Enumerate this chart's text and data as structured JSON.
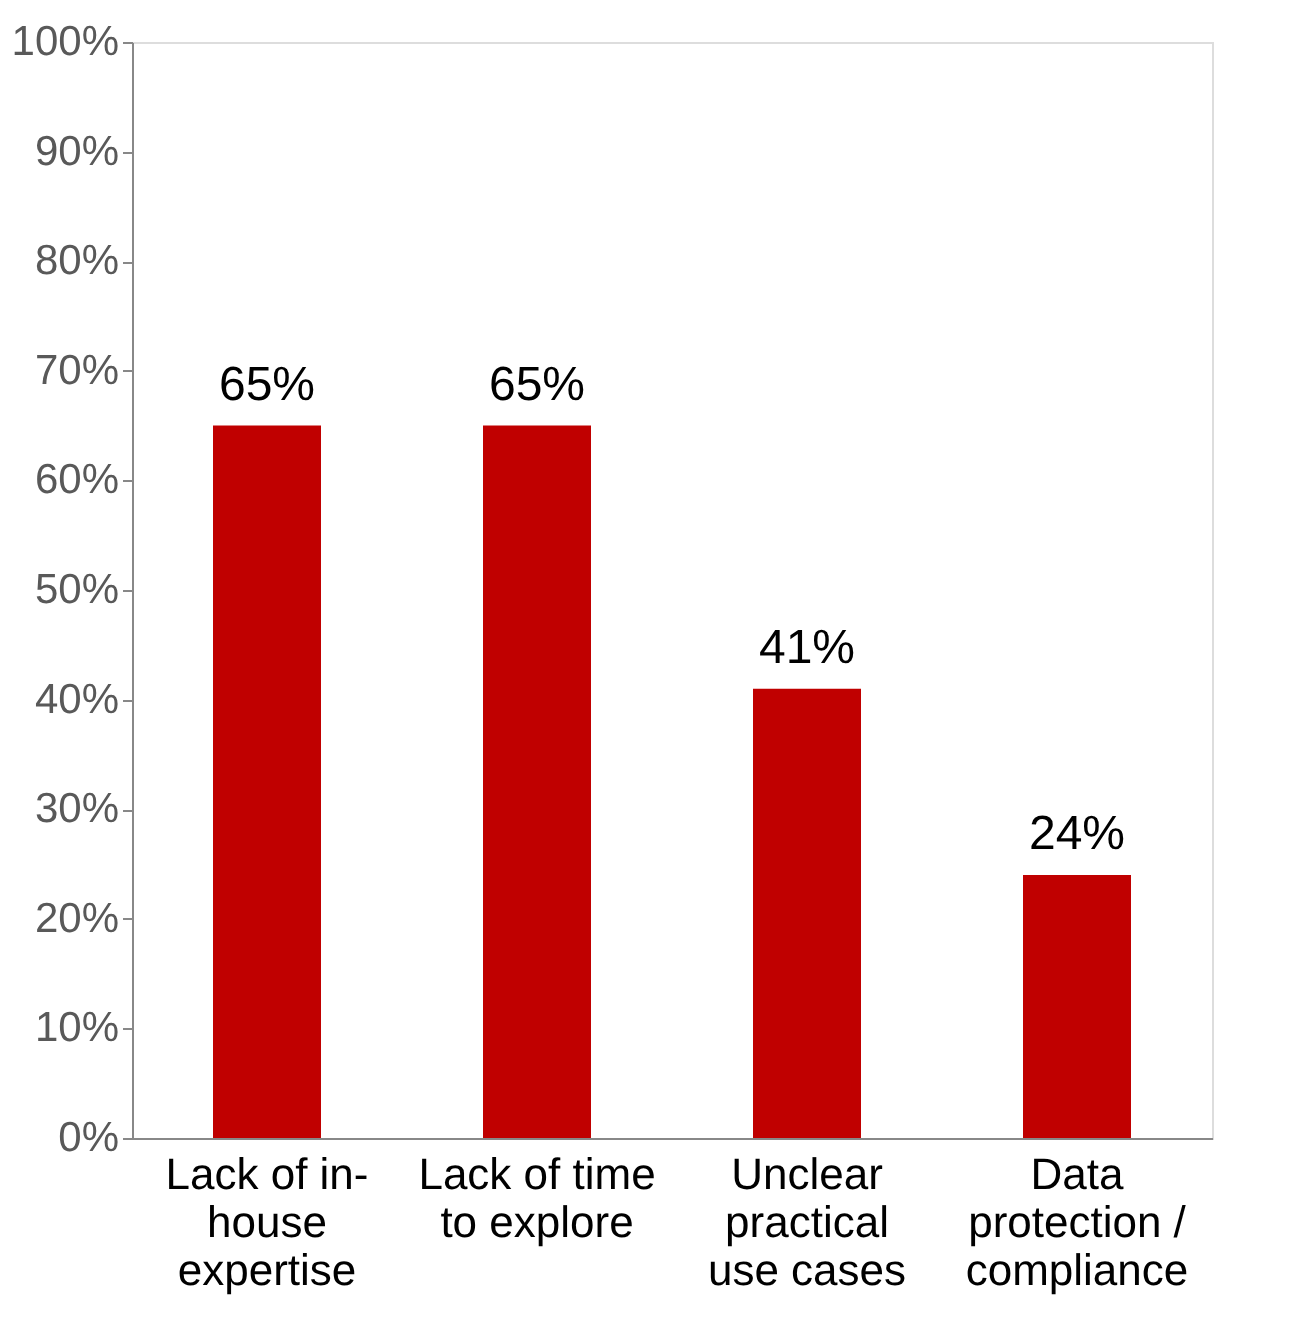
{
  "chart_data": {
    "type": "bar",
    "categories": [
      "Lack of in-house expertise",
      "Lack of time to explore",
      "Unclear practical use cases",
      "Data protection / compliance"
    ],
    "values": [
      65,
      65,
      41,
      24
    ],
    "value_labels": [
      "65%",
      "65%",
      "41%",
      "24%"
    ],
    "color": "#c00000",
    "ylim": [
      0,
      100
    ],
    "yticks": [
      {
        "value": 0,
        "label": "0%"
      },
      {
        "value": 10,
        "label": "10%"
      },
      {
        "value": 20,
        "label": "20%"
      },
      {
        "value": 30,
        "label": "30%"
      },
      {
        "value": 40,
        "label": "40%"
      },
      {
        "value": 50,
        "label": "50%"
      },
      {
        "value": 60,
        "label": "60%"
      },
      {
        "value": 70,
        "label": "70%"
      },
      {
        "value": 80,
        "label": "80%"
      },
      {
        "value": 90,
        "label": "90%"
      },
      {
        "value": 100,
        "label": "100%"
      }
    ],
    "grid": false
  }
}
